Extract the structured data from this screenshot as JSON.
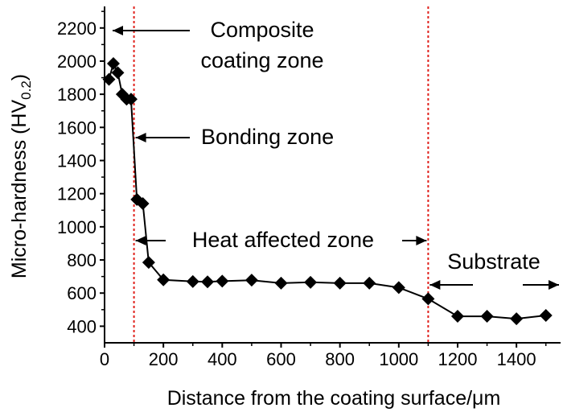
{
  "chart_data": {
    "type": "line",
    "title": "",
    "xlabel": "Distance from the coating surface/μm",
    "ylabel_main": "Micro-hardness (HV",
    "ylabel_sub": "0.2",
    "ylabel_close": ")",
    "xlim": [
      0,
      1550
    ],
    "ylim": [
      300,
      2330
    ],
    "xticks": [
      0,
      200,
      400,
      600,
      800,
      1000,
      1200,
      1400
    ],
    "yticks": [
      400,
      600,
      800,
      1000,
      1200,
      1400,
      1600,
      1800,
      2000,
      2200
    ],
    "grid": false,
    "marker": "diamond",
    "colors": {
      "series": "#000000",
      "boundary": "#e0201b",
      "axis": "#000000"
    },
    "series": [
      {
        "x": [
          15,
          30,
          45,
          60,
          75,
          90,
          110,
          130,
          150,
          200,
          300,
          350,
          400,
          500,
          600,
          700,
          800,
          900,
          1000,
          1100,
          1200,
          1300,
          1400,
          1500
        ],
        "y": [
          1890,
          1985,
          1930,
          1800,
          1770,
          1770,
          1165,
          1140,
          785,
          680,
          670,
          668,
          672,
          678,
          660,
          665,
          660,
          660,
          633,
          565,
          460,
          460,
          445,
          465
        ]
      }
    ],
    "boundaries_x": [
      100,
      1100
    ],
    "annotations": [
      {
        "lines": [
          "Composite",
          "coating zone"
        ]
      },
      {
        "lines": [
          "Bonding zone"
        ]
      },
      {
        "lines": [
          "Heat affected zone"
        ]
      },
      {
        "lines": [
          "Substrate"
        ]
      }
    ]
  }
}
